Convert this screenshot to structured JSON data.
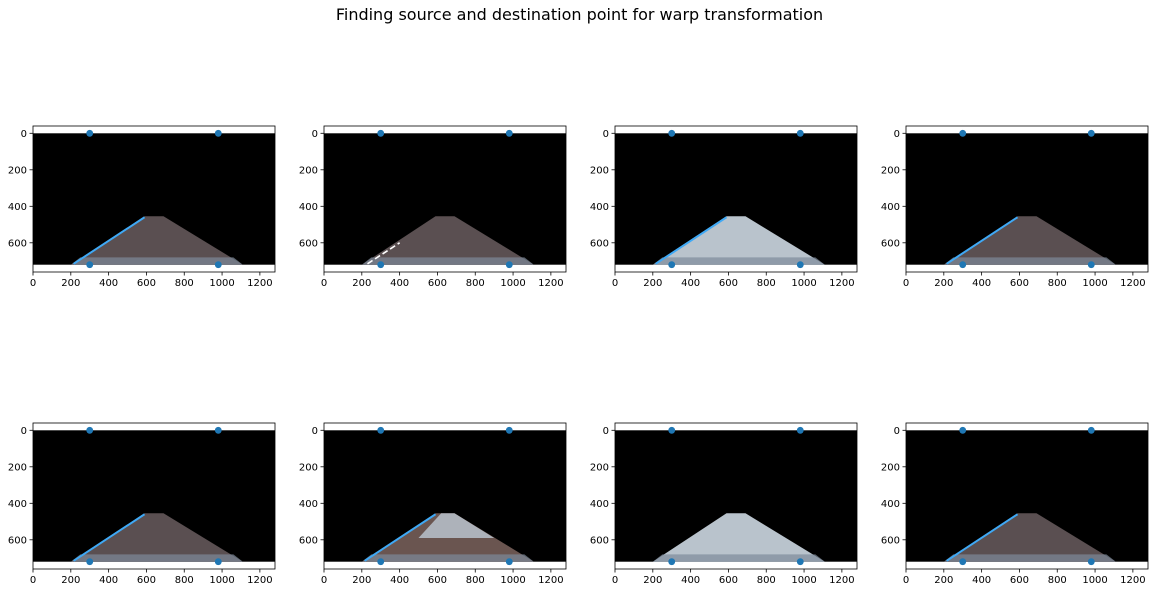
{
  "title": "Finding source and destination point for warp transformation",
  "colors": {
    "points": "#1f77b4",
    "background": "#000000",
    "lane_line": "#3fa9f5",
    "road_dark": "#5a4f51",
    "road_light": "#b9c3cc",
    "road_dark_patched": "#6a5550"
  },
  "chart_data": [
    {
      "type": "scatter",
      "xlim": [
        0,
        1280
      ],
      "ylim": [
        760,
        -40
      ],
      "xticks": [
        0,
        200,
        400,
        600,
        800,
        1000,
        1200
      ],
      "yticks": [
        0,
        200,
        400,
        600
      ],
      "x": [
        300,
        980,
        300,
        980
      ],
      "y": [
        0,
        0,
        720,
        720
      ],
      "road": "dark",
      "lane_line": "left-long",
      "title": "",
      "xlabel": "",
      "ylabel": ""
    },
    {
      "type": "scatter",
      "xlim": [
        0,
        1280
      ],
      "ylim": [
        760,
        -40
      ],
      "xticks": [
        0,
        200,
        400,
        600,
        800,
        1000,
        1200
      ],
      "yticks": [
        0,
        200,
        400,
        600
      ],
      "x": [
        300,
        980,
        300,
        980
      ],
      "y": [
        0,
        0,
        720,
        720
      ],
      "road": "dark",
      "lane_line": "left-white-dashes",
      "title": "",
      "xlabel": "",
      "ylabel": ""
    },
    {
      "type": "scatter",
      "xlim": [
        0,
        1280
      ],
      "ylim": [
        760,
        -40
      ],
      "xticks": [
        0,
        200,
        400,
        600,
        800,
        1000,
        1200
      ],
      "yticks": [
        0,
        200,
        400,
        600
      ],
      "x": [
        300,
        980,
        300,
        980
      ],
      "y": [
        0,
        0,
        720,
        720
      ],
      "road": "light",
      "lane_line": "left-long",
      "title": "",
      "xlabel": "",
      "ylabel": ""
    },
    {
      "type": "scatter",
      "xlim": [
        0,
        1280
      ],
      "ylim": [
        760,
        -40
      ],
      "xticks": [
        0,
        200,
        400,
        600,
        800,
        1000,
        1200
      ],
      "yticks": [
        0,
        200,
        400,
        600
      ],
      "x": [
        300,
        980,
        300,
        980
      ],
      "y": [
        0,
        0,
        720,
        720
      ],
      "road": "dark",
      "lane_line": "left-long",
      "title": "",
      "xlabel": "",
      "ylabel": ""
    },
    {
      "type": "scatter",
      "xlim": [
        0,
        1280
      ],
      "ylim": [
        760,
        -40
      ],
      "xticks": [
        0,
        200,
        400,
        600,
        800,
        1000,
        1200
      ],
      "yticks": [
        0,
        200,
        400,
        600
      ],
      "x": [
        300,
        980,
        300,
        980
      ],
      "y": [
        0,
        0,
        720,
        720
      ],
      "road": "dark",
      "lane_line": "left-long",
      "title": "",
      "xlabel": "",
      "ylabel": ""
    },
    {
      "type": "scatter",
      "xlim": [
        0,
        1280
      ],
      "ylim": [
        760,
        -40
      ],
      "xticks": [
        0,
        200,
        400,
        600,
        800,
        1000,
        1200
      ],
      "yticks": [
        0,
        200,
        400,
        600
      ],
      "x": [
        300,
        980,
        300,
        980
      ],
      "y": [
        0,
        0,
        720,
        720
      ],
      "road": "patched",
      "lane_line": "left-long",
      "title": "",
      "xlabel": "",
      "ylabel": ""
    },
    {
      "type": "scatter",
      "xlim": [
        0,
        1280
      ],
      "ylim": [
        760,
        -40
      ],
      "xticks": [
        0,
        200,
        400,
        600,
        800,
        1000,
        1200
      ],
      "yticks": [
        0,
        200,
        400,
        600
      ],
      "x": [
        300,
        980,
        300,
        980
      ],
      "y": [
        0,
        0,
        720,
        720
      ],
      "road": "light",
      "lane_line": "none",
      "title": "",
      "xlabel": "",
      "ylabel": ""
    },
    {
      "type": "scatter",
      "xlim": [
        0,
        1280
      ],
      "ylim": [
        760,
        -40
      ],
      "xticks": [
        0,
        200,
        400,
        600,
        800,
        1000,
        1200
      ],
      "yticks": [
        0,
        200,
        400,
        600
      ],
      "x": [
        300,
        980,
        300,
        980
      ],
      "y": [
        0,
        0,
        720,
        720
      ],
      "road": "dark",
      "lane_line": "left-long",
      "title": "",
      "xlabel": "",
      "ylabel": ""
    }
  ]
}
